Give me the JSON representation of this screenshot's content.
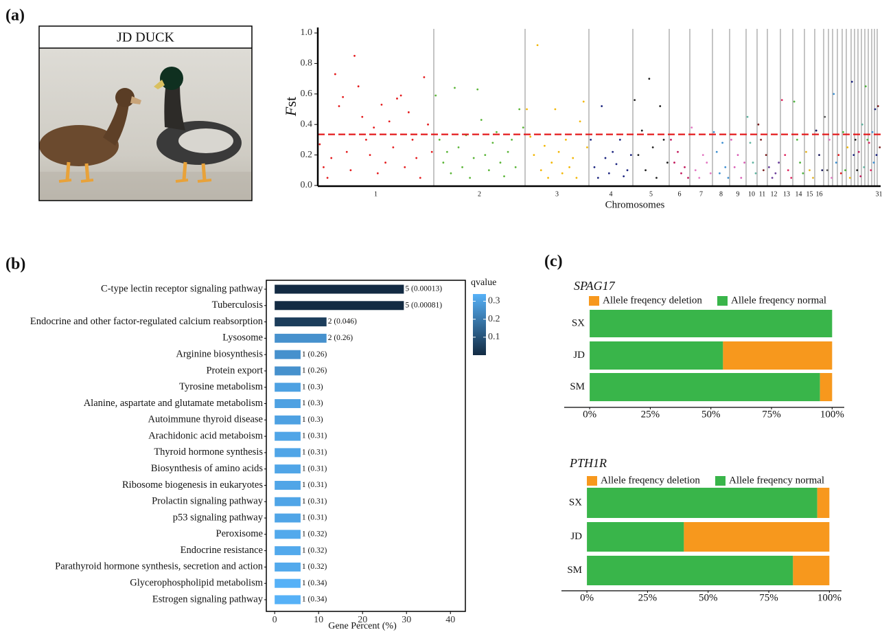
{
  "panels": [
    "(a)",
    "(b)",
    "(c)"
  ],
  "photo": {
    "label": "JD DUCK"
  },
  "chart_data": [
    {
      "type": "scatter",
      "x_label": "Chromosomes",
      "y_label": "Fst",
      "categories": [
        "1",
        "2",
        "3",
        "4",
        "5",
        "6",
        "7",
        "8",
        "9",
        "10",
        "11",
        "12",
        "13",
        "14",
        "15",
        "16",
        null,
        null,
        null,
        null,
        null,
        null,
        null,
        null,
        null,
        null,
        null,
        null,
        null,
        null,
        "31"
      ],
      "ylim": [
        0,
        1.0
      ],
      "yticks": [
        {
          "value": 0,
          "label": "0.0"
        },
        0.2,
        0.4,
        0.6,
        0.8,
        {
          "value": 1,
          "label": "1.0"
        }
      ],
      "threshold": 0.335,
      "threshold_color": "#e41a1c",
      "series": [
        {
          "color": "#e41a1c",
          "values": [
            0.27,
            0.12,
            0.05,
            0.18,
            0.73,
            0.52,
            0.58,
            0.22,
            0.1,
            0.85,
            0.65,
            0.45,
            0.3,
            0.2,
            0.38,
            0.08,
            0.53,
            0.15,
            0.42,
            0.25,
            0.57,
            0.59,
            0.12,
            0.48,
            0.3,
            0.18,
            0.05,
            0.71,
            0.4,
            0.22
          ]
        },
        {
          "color": "#5ab537",
          "values": [
            0.59,
            0.3,
            0.15,
            0.22,
            0.08,
            0.64,
            0.25,
            0.12,
            0.33,
            0.05,
            0.18,
            0.63,
            0.43,
            0.2,
            0.1,
            0.28,
            0.35,
            0.15,
            0.06,
            0.22,
            0.3,
            0.12,
            0.5,
            0.38
          ]
        },
        {
          "color": "#f2b705",
          "values": [
            0.5,
            0.32,
            0.2,
            0.92,
            0.1,
            0.26,
            0.05,
            0.15,
            0.5,
            0.22,
            0.08,
            0.3,
            0.12,
            0.18,
            0.05,
            0.42,
            0.55,
            0.25
          ]
        },
        {
          "color": "#1a237e",
          "values": [
            0.3,
            0.12,
            0.05,
            0.52,
            0.18,
            0.08,
            0.22,
            0.14,
            0.3,
            0.06,
            0.1,
            0.2
          ]
        },
        {
          "color": "#1e1e1e",
          "values": [
            0.56,
            0.2,
            0.36,
            0.1,
            0.7,
            0.25,
            0.05,
            0.52,
            0.3,
            0.15
          ]
        },
        {
          "color": "#c2185b",
          "values": [
            0.3,
            0.15,
            0.22,
            0.08,
            0.12,
            0.05
          ]
        },
        {
          "color": "#e377c2",
          "values": [
            0.38,
            0.1,
            0.05,
            0.2,
            0.15,
            0.08
          ]
        },
        {
          "color": "#3d8fd1",
          "values": [
            0.35,
            0.22,
            0.08,
            0.28,
            0.12,
            0.05
          ]
        },
        {
          "color": "#d95fb6",
          "values": [
            0.3,
            0.12,
            0.2,
            0.05,
            0.15
          ]
        },
        {
          "color": "#5fb4a0",
          "values": [
            0.45,
            0.28,
            0.15,
            0.08
          ]
        },
        {
          "color": "#7b1f1f",
          "values": [
            0.4,
            0.3,
            0.1,
            0.2
          ]
        },
        {
          "color": "#6a3d9a",
          "values": [
            0.12,
            0.05,
            0.08,
            0.15
          ]
        },
        {
          "color": "#e0245e",
          "values": [
            0.56,
            0.2,
            0.1,
            0.05
          ]
        },
        {
          "color": "#4db33d",
          "values": [
            0.55,
            0.3,
            0.15,
            0.08
          ]
        },
        {
          "color": "#e6b422",
          "values": [
            0.22,
            0.1,
            0.05
          ]
        },
        {
          "color": "#1a1a5e",
          "values": [
            0.36,
            0.2,
            0.1
          ]
        },
        {
          "color": "#555555",
          "values": [
            0.45,
            0.1
          ]
        },
        {
          "color": "#e377c2",
          "values": [
            0.3,
            0.05
          ]
        },
        {
          "color": "#3d8fd1",
          "values": [
            0.6,
            0.15
          ]
        },
        {
          "color": "#e41a1c",
          "values": [
            0.2,
            0.08
          ]
        },
        {
          "color": "#4db33d",
          "values": [
            0.35,
            0.1
          ]
        },
        {
          "color": "#f2b705",
          "values": [
            0.25,
            0.05
          ]
        },
        {
          "color": "#1a237e",
          "values": [
            0.68,
            0.2
          ]
        },
        {
          "color": "#1e1e1e",
          "values": [
            0.3,
            0.1
          ]
        },
        {
          "color": "#c2185b",
          "values": [
            0.22,
            0.06
          ]
        },
        {
          "color": "#5fb4a0",
          "values": [
            0.4,
            0.12
          ]
        },
        {
          "color": "#4db33d",
          "values": [
            0.65,
            0.3
          ]
        },
        {
          "color": "#e0245e",
          "values": [
            0.28,
            0.1
          ]
        },
        {
          "color": "#3d8fd1",
          "values": [
            0.35,
            0.15
          ]
        },
        {
          "color": "#1a237e",
          "values": [
            0.5,
            0.2
          ]
        },
        {
          "color": "#7b1f1f",
          "values": [
            0.52,
            0.25
          ]
        }
      ]
    },
    {
      "type": "bar",
      "x_label": "Gene Percent (%)",
      "categories": [
        "C-type lectin receptor signaling pathway",
        "Tuberculosis",
        "Endocrine and other factor-regulated calcium reabsorption",
        "Lysosome",
        "Arginine biosynthesis",
        "Protein export",
        "Tyrosine metabolism",
        "Alanine, aspartate and glutamate metabolism",
        "Autoimmune thyroid disease",
        "Arachidonic acid metaboism",
        "Thyroid hormone synthesis",
        "Biosynthesis of amino acids",
        "Ribosome biogenesis in eukaryotes",
        "Prolactin signaling pathway",
        "p53 signaling pathway",
        "Peroxisome",
        "Endocrine resistance",
        "Parathyroid hormone synthesis, secretion and action",
        "Glycerophospholipid metabolism",
        "Estrogen signaling pathway"
      ],
      "values": [
        29.4,
        29.4,
        11.8,
        11.8,
        5.9,
        5.9,
        5.9,
        5.9,
        5.9,
        5.9,
        5.9,
        5.9,
        5.9,
        5.9,
        5.9,
        5.9,
        5.9,
        5.9,
        5.9,
        5.9
      ],
      "bar_labels": [
        "5 (0.00013)",
        "5 (0.00081)",
        "2 (0.046)",
        "2 (0.26)",
        "1 (0.26)",
        "1 (0.26)",
        "1 (0.3)",
        "1 (0.3)",
        "1 (0.3)",
        "1 (0.31)",
        "1 (0.31)",
        "1 (0.31)",
        "1 (0.31)",
        "1 (0.31)",
        "1 (0.31)",
        "1 (0.32)",
        "1 (0.32)",
        "1 (0.32)",
        "1 (0.34)",
        "1 (0.34)"
      ],
      "qvalues": [
        0.00013,
        0.00081,
        0.046,
        0.26,
        0.26,
        0.26,
        0.3,
        0.3,
        0.3,
        0.31,
        0.31,
        0.31,
        0.31,
        0.31,
        0.31,
        0.32,
        0.32,
        0.32,
        0.34,
        0.34
      ],
      "xlim": [
        -1.9,
        43.4
      ],
      "xticks": [
        0,
        10,
        20,
        30,
        40
      ],
      "color_scale": {
        "title": "qvalue",
        "lim": [
          0.00013,
          0.34
        ],
        "ticks": [
          0.1,
          0.2,
          0.3
        ],
        "colors": [
          "#132b43",
          "#56b1f7"
        ]
      }
    },
    {
      "type": "stacked_bar",
      "title": "SPAG17",
      "categories": [
        "SX",
        "JD",
        "SM"
      ],
      "series": [
        {
          "name": "Allele freqency deletion",
          "color": "#f7981d",
          "values": [
            0,
            45,
            5
          ]
        },
        {
          "name": "Allele freqency normal",
          "color": "#39b54a",
          "values": [
            100,
            55,
            95
          ]
        }
      ],
      "xlim": [
        -10.5,
        105
      ],
      "xticks": [
        {
          "value": 0,
          "label": "0%"
        },
        {
          "value": 25,
          "label": "25%"
        },
        {
          "value": 50,
          "label": "50%"
        },
        {
          "value": 75,
          "label": "75%"
        },
        {
          "value": 100,
          "label": "100%"
        }
      ]
    },
    {
      "type": "stacked_bar",
      "title": "PTH1R",
      "categories": [
        "SX",
        "JD",
        "SM"
      ],
      "series": [
        {
          "name": "Allele freqency deletion",
          "color": "#f7981d",
          "values": [
            5,
            60,
            15
          ]
        },
        {
          "name": "Allele freqency normal",
          "color": "#39b54a",
          "values": [
            95,
            40,
            85
          ]
        }
      ],
      "xlim": [
        -10.5,
        105
      ],
      "xticks": [
        {
          "value": 0,
          "label": "0%"
        },
        {
          "value": 25,
          "label": "25%"
        },
        {
          "value": 50,
          "label": "50%"
        },
        {
          "value": 75,
          "label": "75%"
        },
        {
          "value": 100,
          "label": "100%"
        }
      ]
    }
  ]
}
